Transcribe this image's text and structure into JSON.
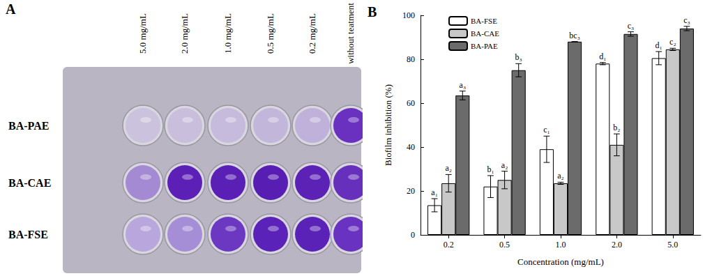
{
  "chart_data": {
    "type": "bar",
    "title": "B",
    "x_label": "Concentration (mg/mL)",
    "y_label": "Biofilm inhibition (%)",
    "categories": [
      "0.2",
      "0.5",
      "1.0",
      "2.0",
      "5.0"
    ],
    "series": [
      {
        "name": "BA-FSE",
        "color": "#ffffff",
        "values": [
          13.5,
          22,
          39,
          78,
          80.5
        ],
        "errors": [
          3,
          5,
          6,
          0.5,
          3
        ],
        "annotations": [
          "a₁",
          "b₁",
          "c₁",
          "d₁",
          "d₁"
        ]
      },
      {
        "name": "BA-CAE",
        "color": "#c8c8c8",
        "values": [
          23.5,
          25,
          23.5,
          41,
          84.5
        ],
        "errors": [
          4,
          4,
          0.5,
          5,
          0.5
        ],
        "annotations": [
          "a₂",
          "a₂",
          "a₂",
          "b₂",
          "c₂"
        ]
      },
      {
        "name": "BA-PAE",
        "color": "#6b6b6b",
        "values": [
          63.5,
          75,
          88,
          91.5,
          94
        ],
        "errors": [
          2,
          3,
          0,
          1,
          1
        ],
        "annotations": [
          "a₃",
          "b₃",
          "bc₃",
          "c₃",
          "c₃"
        ]
      }
    ],
    "ylim": [
      0,
      100
    ],
    "yticks": [
      0,
      20,
      40,
      60,
      80,
      100
    ],
    "grid": false,
    "legend": "upper left"
  },
  "plate": {
    "label": "A",
    "columns": [
      "5.0 mg/mL",
      "2.0 mg/mL",
      "1.0 mg/mL",
      "0.5 mg/mL",
      "0.2 mg/mL",
      "without teatment"
    ],
    "rows": [
      {
        "label": "BA-PAE",
        "colors": [
          "#cbc2de",
          "#c9bfdd",
          "#c6bbdc",
          "#c3b6db",
          "#bfb1da",
          "#6a30c0"
        ]
      },
      {
        "label": "BA-CAE",
        "colors": [
          "#a48ad2",
          "#5c20b6",
          "#5a1fb4",
          "#581db3",
          "#5c22b6",
          "#6630bd"
        ]
      },
      {
        "label": "BA-FSE",
        "colors": [
          "#b8a6dc",
          "#a68ed6",
          "#6c38c2",
          "#5a22b8",
          "#5b22b8",
          "#6a32c0"
        ]
      }
    ]
  }
}
